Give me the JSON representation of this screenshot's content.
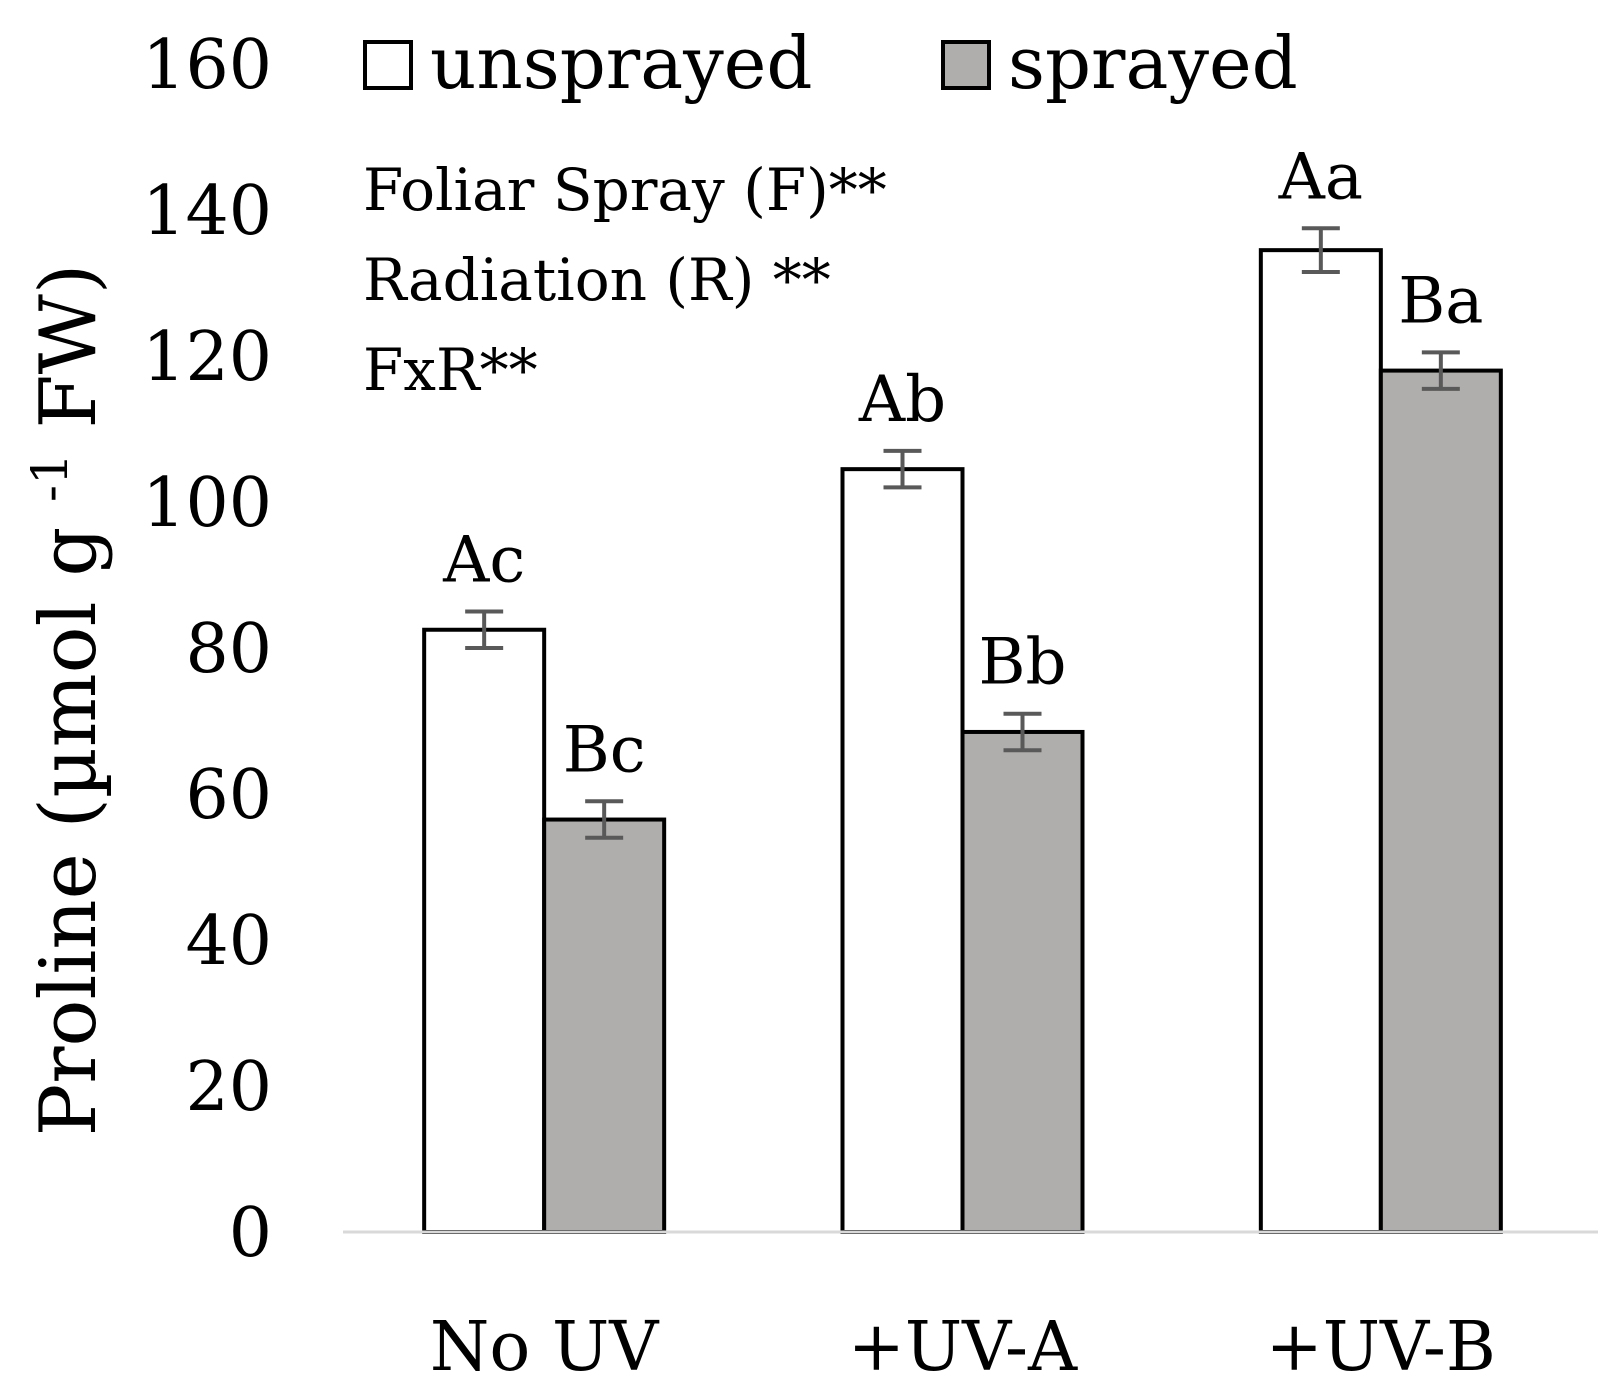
{
  "chart_data": {
    "type": "bar",
    "categories": [
      "No UV",
      "+UV-A",
      "+UV-B"
    ],
    "series": [
      {
        "name": "unsprayed",
        "color": "#ffffff",
        "values": [
          82.5,
          104.5,
          134.5
        ],
        "errors": [
          2.5,
          2.5,
          3
        ],
        "labels": [
          "Ac",
          "Ab",
          "Aa"
        ]
      },
      {
        "name": "sprayed",
        "color": "#b0aeac",
        "values": [
          56.5,
          68.5,
          118
        ],
        "errors": [
          2.5,
          2.5,
          2.5
        ],
        "labels": [
          "Bc",
          "Bb",
          "Ba"
        ]
      }
    ],
    "ylabel": "Proline (µmol g -1 FW)",
    "ylabel_parts": {
      "main": "Proline (µmol g ",
      "sup": "-1",
      "end": " FW)"
    },
    "xlabel": "",
    "ylim": [
      0,
      160
    ],
    "yticks": [
      "0",
      "20",
      "40",
      "60",
      "80",
      "100",
      "120",
      "140",
      "160"
    ],
    "legend": {
      "position": "top",
      "entries": [
        "unsprayed",
        "sprayed"
      ]
    },
    "annotations": [
      "Foliar Spray (F)**",
      "Radiation (R) **",
      "FxR**"
    ],
    "grid": false,
    "axis_color": "#d9d9d9",
    "error_color": "#595959",
    "bar_edge_color": "#000000"
  }
}
